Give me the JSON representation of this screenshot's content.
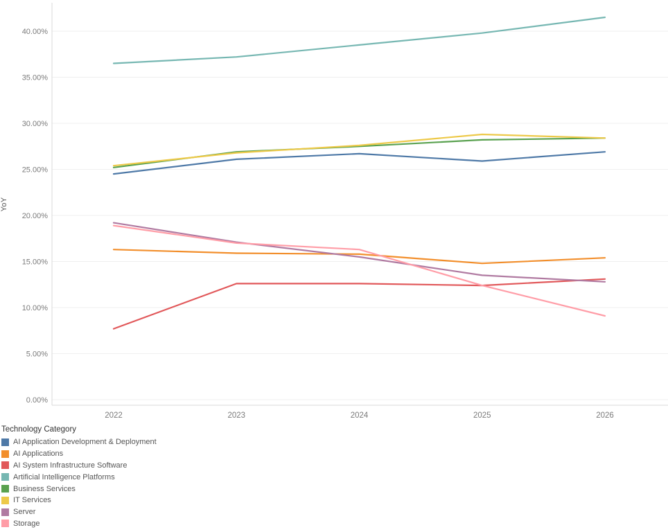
{
  "chart_data": {
    "type": "line",
    "title": "",
    "ylabel": "YoY",
    "xlabel": "",
    "x": [
      "2022",
      "2023",
      "2024",
      "2025",
      "2026"
    ],
    "y_ticks": [
      "0.00%",
      "5.00%",
      "10.00%",
      "15.00%",
      "20.00%",
      "25.00%",
      "30.00%",
      "35.00%",
      "40.00%"
    ],
    "y_tick_values": [
      0,
      5,
      10,
      15,
      20,
      25,
      30,
      35,
      40
    ],
    "ylim": [
      0,
      43
    ],
    "grid": true,
    "legend_title": "Technology Category",
    "legend_position": "bottom-left",
    "series": [
      {
        "name": "AI Application Development & Deployment",
        "color": "#4e79a7",
        "values": [
          24.5,
          26.1,
          26.7,
          25.9,
          26.9
        ]
      },
      {
        "name": "AI Applications",
        "color": "#f28e2b",
        "values": [
          16.3,
          15.9,
          15.8,
          14.8,
          15.4
        ]
      },
      {
        "name": "AI System Infrastructure Software",
        "color": "#e15759",
        "values": [
          7.7,
          12.6,
          12.6,
          12.4,
          13.1
        ]
      },
      {
        "name": "Artificial Intelligence Platforms",
        "color": "#76b7b2",
        "values": [
          36.5,
          37.2,
          38.5,
          39.8,
          41.5
        ]
      },
      {
        "name": "Business Services",
        "color": "#59a14f",
        "values": [
          25.2,
          26.9,
          27.5,
          28.2,
          28.4
        ]
      },
      {
        "name": "IT Services",
        "color": "#edc949",
        "values": [
          25.4,
          26.8,
          27.6,
          28.8,
          28.4
        ]
      },
      {
        "name": "Server",
        "color": "#b07aa1",
        "values": [
          19.2,
          17.1,
          15.5,
          13.5,
          12.8
        ]
      },
      {
        "name": "Storage",
        "color": "#ff9da7",
        "values": [
          18.9,
          17.0,
          16.3,
          12.4,
          9.1
        ]
      }
    ],
    "style": {
      "grid_color": "#efefef",
      "axis_color": "#d9d9d9",
      "tick_label_color": "#7a7a7a",
      "line_width": 2.2
    }
  }
}
